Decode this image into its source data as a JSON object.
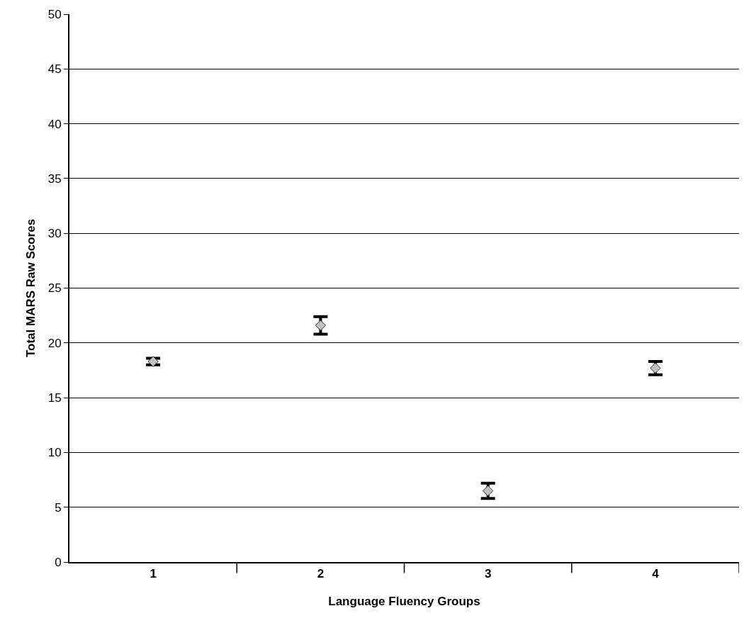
{
  "chart_data": {
    "type": "scatter",
    "xlabel": "Language Fluency Groups",
    "ylabel": "Total MARS Raw Scores",
    "categories": [
      "1",
      "2",
      "3",
      "4"
    ],
    "values": [
      18.3,
      21.6,
      6.5,
      17.7
    ],
    "errors": [
      0.3,
      0.8,
      0.7,
      0.6
    ],
    "color": "#c0c0c0",
    "marker": "diamond",
    "ylim": [
      0,
      50
    ],
    "yticks": [
      0,
      5,
      10,
      15,
      20,
      25,
      30,
      35,
      40,
      45,
      50
    ],
    "grid": "y"
  }
}
